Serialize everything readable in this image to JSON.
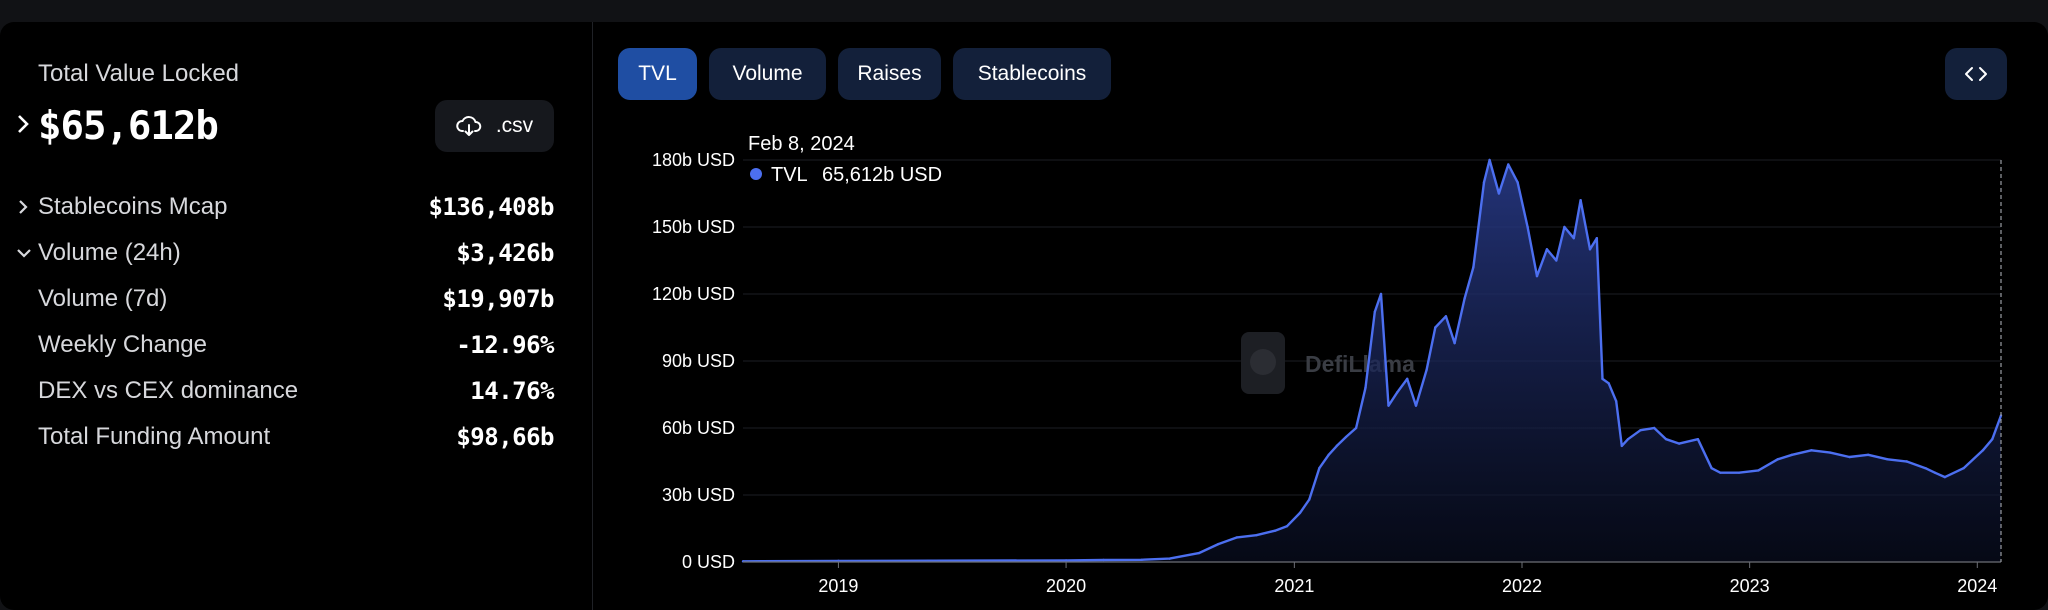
{
  "summary": {
    "tvl_label": "Total Value Locked",
    "tvl_value": "$65,612b",
    "csv_label": ".csv",
    "stats": [
      {
        "label": "Stablecoins Mcap",
        "value": "$136,408b",
        "chevron": "right"
      },
      {
        "label": "Volume (24h)",
        "value": "$3,426b",
        "chevron": "down"
      },
      {
        "label": "Volume (7d)",
        "value": "$19,907b",
        "chevron": ""
      },
      {
        "label": "Weekly Change",
        "value": "-12.96%",
        "chevron": ""
      },
      {
        "label": "DEX vs CEX dominance",
        "value": "14.76%",
        "chevron": ""
      },
      {
        "label": "Total Funding Amount",
        "value": "$98,66b",
        "chevron": ""
      }
    ]
  },
  "tabs": [
    {
      "label": "TVL",
      "active": true
    },
    {
      "label": "Volume",
      "active": false
    },
    {
      "label": "Raises",
      "active": false
    },
    {
      "label": "Stablecoins",
      "active": false
    }
  ],
  "icons": {
    "download": "cloud-download-icon",
    "embed": "code-embed-icon",
    "expand": "chevron-right-icon",
    "collapse": "chevron-down-icon"
  },
  "colors": {
    "accent": "#4c6ff0",
    "active_tab": "#1f4ea3",
    "tab_bg": "#13203a"
  },
  "tooltip": {
    "date": "Feb 8, 2024",
    "series": "TVL",
    "value": "65,612b USD"
  },
  "watermark": "DefiLlama",
  "chart_data": {
    "type": "area",
    "series": [
      {
        "name": "TVL",
        "x": [
          "2018-08-01",
          "2019-01-01",
          "2019-06-01",
          "2020-01-01",
          "2020-03-01",
          "2020-05-01",
          "2020-06-15",
          "2020-08-01",
          "2020-09-01",
          "2020-10-01",
          "2020-11-01",
          "2020-12-01",
          "2020-12-20",
          "2021-01-10",
          "2021-01-25",
          "2021-02-10",
          "2021-02-25",
          "2021-03-10",
          "2021-03-25",
          "2021-04-10",
          "2021-04-25",
          "2021-05-10",
          "2021-05-20",
          "2021-06-01",
          "2021-06-15",
          "2021-07-01",
          "2021-07-15",
          "2021-08-01",
          "2021-08-15",
          "2021-09-01",
          "2021-09-15",
          "2021-10-01",
          "2021-10-15",
          "2021-11-01",
          "2021-11-10",
          "2021-11-25",
          "2021-12-10",
          "2021-12-25",
          "2022-01-10",
          "2022-01-25",
          "2022-02-10",
          "2022-02-25",
          "2022-03-10",
          "2022-03-25",
          "2022-04-05",
          "2022-04-20",
          "2022-05-01",
          "2022-05-10",
          "2022-05-20",
          "2022-06-01",
          "2022-06-10",
          "2022-06-20",
          "2022-07-10",
          "2022-08-01",
          "2022-08-20",
          "2022-09-10",
          "2022-10-10",
          "2022-11-01",
          "2022-11-15",
          "2022-12-15",
          "2023-01-15",
          "2023-02-15",
          "2023-03-10",
          "2023-04-10",
          "2023-05-10",
          "2023-06-10",
          "2023-07-10",
          "2023-08-10",
          "2023-09-10",
          "2023-10-10",
          "2023-10-25",
          "2023-11-10",
          "2023-12-10",
          "2024-01-10",
          "2024-01-25",
          "2024-02-08"
        ],
        "values": [
          0.3,
          0.5,
          0.6,
          0.7,
          0.9,
          1.0,
          1.5,
          4,
          8,
          11,
          12,
          14,
          16,
          22,
          28,
          42,
          48,
          52,
          56,
          60,
          78,
          112,
          120,
          70,
          76,
          82,
          70,
          86,
          105,
          110,
          98,
          118,
          132,
          170,
          180,
          165,
          178,
          170,
          150,
          128,
          140,
          135,
          150,
          145,
          162,
          140,
          145,
          82,
          80,
          72,
          52,
          55,
          59,
          60,
          55,
          53,
          55,
          42,
          40,
          40,
          41,
          46,
          48,
          50,
          49,
          47,
          48,
          46,
          45,
          42,
          40,
          38,
          42,
          50,
          55,
          65.6
        ]
      }
    ],
    "title": "",
    "xlabel": "",
    "ylabel": "",
    "x_ticks": [
      "2019",
      "2020",
      "2021",
      "2022",
      "2023",
      "2024"
    ],
    "y_ticks": [
      "0 USD",
      "30b USD",
      "60b USD",
      "90b USD",
      "120b USD",
      "150b USD",
      "180b USD"
    ],
    "ylim": [
      0,
      180
    ],
    "xlim": [
      "2018-08-01",
      "2024-02-08"
    ],
    "grid": "horizontal",
    "legend": "none"
  }
}
